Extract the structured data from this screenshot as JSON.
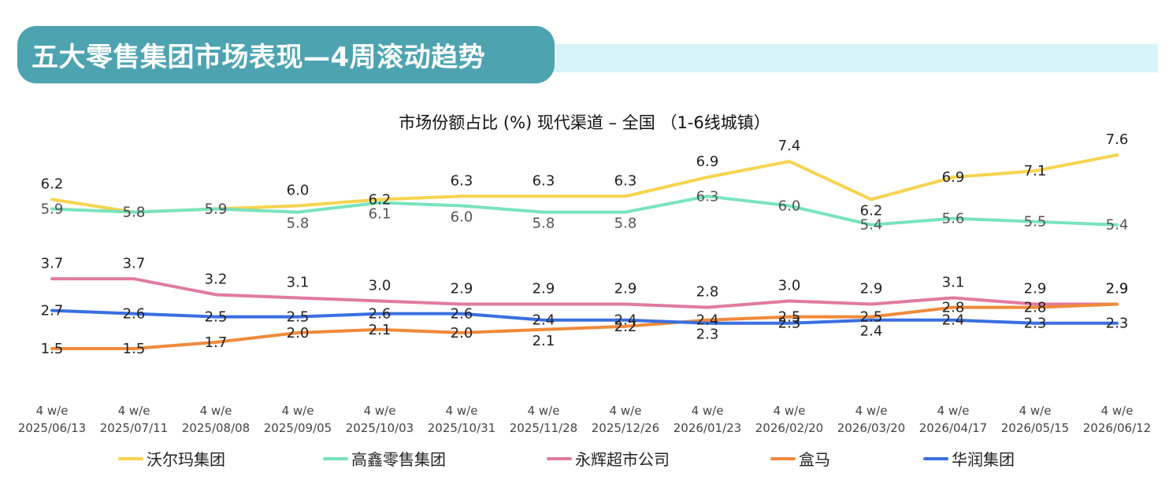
{
  "header": {
    "title": "五大零售集团市场表现—4周滚动趋势"
  },
  "chart_data": {
    "type": "line",
    "title": "市场份额占比 (%) 现代渠道 – 全国 （1-6线城镇）",
    "categories": [
      "4 w/e\n2025/06/13",
      "4 w/e\n2025/07/11",
      "4 w/e\n2025/08/08",
      "4 w/e\n2025/09/05",
      "4 w/e\n2025/10/03",
      "4 w/e\n2025/10/31",
      "4 w/e\n2025/11/28",
      "4 w/e\n2025/12/26",
      "4 w/e\n2026/01/23",
      "4 w/e\n2026/02/20",
      "4 w/e\n2026/03/20",
      "4 w/e\n2026/04/17",
      "4 w/e\n2026/05/15",
      "4 w/e\n2026/06/12"
    ],
    "series": [
      {
        "name": "沃尔玛集团",
        "color": "#f6d44f",
        "values": [
          6.2,
          5.8,
          5.9,
          6.0,
          6.2,
          6.3,
          6.3,
          6.3,
          6.9,
          7.4,
          6.2,
          6.9,
          7.1,
          7.6
        ],
        "label_pos": [
          "above",
          "at",
          "at",
          "above",
          "at",
          "above",
          "above",
          "above",
          "above",
          "above",
          "below",
          "at",
          "at",
          "above"
        ],
        "label_color": "#222"
      },
      {
        "name": "高鑫零售集团",
        "color": "#79e3bd",
        "values": [
          5.9,
          5.8,
          5.9,
          5.8,
          6.1,
          6.0,
          5.8,
          5.8,
          6.3,
          6.0,
          5.4,
          5.6,
          5.5,
          5.4
        ],
        "label_pos": [
          "at",
          "at",
          "at",
          "below",
          "below",
          "below",
          "below",
          "below",
          "at",
          "at",
          "at",
          "at",
          "at",
          "at"
        ],
        "label_color": "#555"
      },
      {
        "name": "永辉超市公司",
        "color": "#e07aa1",
        "values": [
          3.7,
          3.7,
          3.2,
          3.1,
          3.0,
          2.9,
          2.9,
          2.9,
          2.8,
          3.0,
          2.9,
          3.1,
          2.9,
          2.9
        ],
        "label_pos": [
          "above",
          "above",
          "above",
          "above",
          "above",
          "above",
          "above",
          "above",
          "above",
          "above",
          "above",
          "above",
          "above",
          "above"
        ],
        "label_color": "#222"
      },
      {
        "name": "盒马",
        "color": "#ef8a3b",
        "values": [
          1.5,
          1.5,
          1.7,
          2.0,
          2.1,
          2.0,
          2.1,
          2.2,
          2.4,
          2.5,
          2.5,
          2.8,
          2.8,
          2.9
        ],
        "label_pos": [
          "at",
          "at",
          "at",
          "at",
          "at",
          "at",
          "below",
          "at",
          "at",
          "at",
          "at",
          "at",
          "at",
          "above"
        ],
        "label_color": "#222"
      },
      {
        "name": "华润集团",
        "color": "#3b6fe0",
        "values": [
          2.7,
          2.6,
          2.5,
          2.5,
          2.6,
          2.6,
          2.4,
          2.4,
          2.3,
          2.3,
          2.4,
          2.4,
          2.3,
          2.3
        ],
        "label_pos": [
          "at",
          "at",
          "at",
          "at",
          "at",
          "at",
          "at",
          "at",
          "below",
          "at",
          "below",
          "at",
          "at",
          "at"
        ],
        "label_color": "#222"
      }
    ],
    "ylim": [
      0,
      8
    ],
    "grid": false,
    "legend_position": "bottom"
  }
}
